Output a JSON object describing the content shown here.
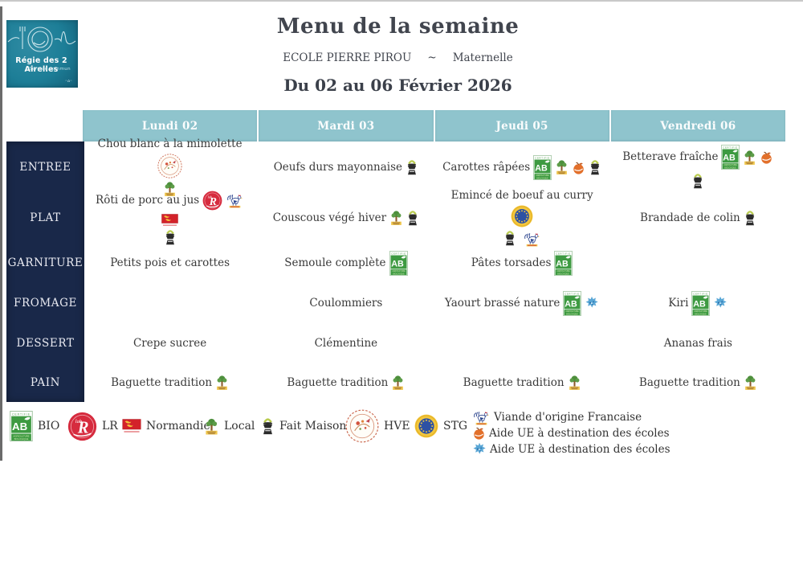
{
  "page": {
    "logo": {
      "line1": "Régie des 2 Airelles",
      "line2": "Service commun"
    },
    "title": "Menu de la semaine",
    "school": "ECOLE PIERRE PIROU",
    "separator": "~",
    "level": "Maternelle",
    "date_range": "Du 02 au 06 Février 2026"
  },
  "colors": {
    "header_band": "#8fc4cd",
    "sidebar_navy": "#192849",
    "logo_teal": "#1d7e97",
    "bio_green": "#3d9a41",
    "label_rouge_red": "#d62b3e",
    "stg_blue": "#2d51a3",
    "stg_yellow": "#f2c63e",
    "text": "#3a3a3a"
  },
  "icon_text": {
    "ab_certifie": "CERTIFIE",
    "ab_letters": "AB",
    "ab_line1": "AGRICULTURE",
    "ab_line2": "BIOLOGIQUE",
    "lr_letter": "R"
  },
  "menu": {
    "days": [
      "Lundi 02",
      "Mardi 03",
      "Jeudi 05",
      "Vendredi 06"
    ],
    "rows": [
      {
        "category": "ENTREE",
        "cells": [
          {
            "text": "Chou blanc à la mimolette",
            "icons": [
              "hve"
            ],
            "icons_below": [
              "local"
            ]
          },
          {
            "text": "Oeufs durs mayonnaise",
            "icons": [
              "fait-maison"
            ],
            "icons_below": []
          },
          {
            "text": "Carottes râpées",
            "icons": [
              "ab",
              "local",
              "apple-ue",
              "fait-maison"
            ],
            "icons_below": []
          },
          {
            "text": "Betterave fraîche",
            "icons": [
              "ab",
              "local",
              "apple-ue",
              "fait-maison"
            ],
            "icons_below": []
          }
        ]
      },
      {
        "category": "PLAT",
        "cells": [
          {
            "text": "Rôti de porc au jus",
            "icons": [
              "label-rouge",
              "rooster",
              "normandie"
            ],
            "icons_below": [
              "fait-maison"
            ]
          },
          {
            "text": "Couscous végé hiver",
            "icons": [
              "local",
              "fait-maison"
            ],
            "icons_below": []
          },
          {
            "text": "Emincé de boeuf au curry",
            "icons": [
              "stg"
            ],
            "icons_below": [
              "fait-maison",
              "rooster"
            ]
          },
          {
            "text": "Brandade de colin",
            "icons": [
              "fait-maison"
            ],
            "icons_below": []
          }
        ]
      },
      {
        "category": "GARNITURE",
        "cells": [
          {
            "text": "Petits pois et carottes",
            "icons": [],
            "icons_below": []
          },
          {
            "text": "Semoule complète",
            "icons": [
              "ab"
            ],
            "icons_below": []
          },
          {
            "text": "Pâtes torsades",
            "icons": [
              "ab"
            ],
            "icons_below": []
          },
          {
            "text": "",
            "icons": [],
            "icons_below": []
          }
        ]
      },
      {
        "category": "FROMAGE",
        "cells": [
          {
            "text": "",
            "icons": [],
            "icons_below": []
          },
          {
            "text": "Coulommiers",
            "icons": [],
            "icons_below": []
          },
          {
            "text": "Yaourt brassé nature",
            "icons": [
              "ab",
              "milk-ue"
            ],
            "icons_below": []
          },
          {
            "text": "Kiri",
            "icons": [
              "ab",
              "milk-ue"
            ],
            "icons_below": []
          }
        ]
      },
      {
        "category": "DESSERT",
        "cells": [
          {
            "text": "Crepe sucree",
            "icons": [],
            "icons_below": []
          },
          {
            "text": "Clémentine",
            "icons": [],
            "icons_below": []
          },
          {
            "text": "",
            "icons": [],
            "icons_below": []
          },
          {
            "text": "Ananas frais",
            "icons": [],
            "icons_below": []
          }
        ]
      },
      {
        "category": "PAIN",
        "cells": [
          {
            "text": "Baguette tradition",
            "icons": [
              "local"
            ],
            "icons_below": []
          },
          {
            "text": "Baguette tradition",
            "icons": [
              "local"
            ],
            "icons_below": []
          },
          {
            "text": "Baguette tradition",
            "icons": [
              "local"
            ],
            "icons_below": []
          },
          {
            "text": "Baguette tradition",
            "icons": [
              "local"
            ],
            "icons_below": []
          }
        ]
      }
    ]
  },
  "legend": {
    "items": [
      {
        "icon": "ab",
        "label": "BIO"
      },
      {
        "icon": "label-rouge",
        "label": "LR"
      },
      {
        "icon": "normandie",
        "label": "Normandie"
      },
      {
        "icon": "local",
        "label": "Local"
      },
      {
        "icon": "fait-maison",
        "label": "Fait Maison"
      },
      {
        "icon": "hve",
        "label": "HVE"
      },
      {
        "icon": "stg",
        "label": "STG"
      }
    ],
    "stacked": [
      {
        "icon": "rooster",
        "label": "Viande d'origine Francaise"
      },
      {
        "icon": "apple-ue",
        "label": "Aide UE à destination des écoles"
      },
      {
        "icon": "milk-ue",
        "label": "Aide UE à destination des écoles"
      }
    ]
  }
}
